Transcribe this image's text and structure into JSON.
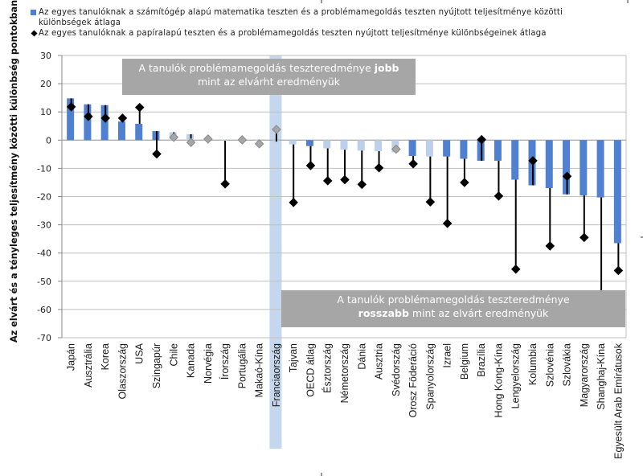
{
  "chart_data": {
    "type": "bar",
    "title": "",
    "xlabel": "",
    "ylabel": "Az elvárt és a tényleges teljesítmény közötti különbség pontokban",
    "ylim": [
      -70,
      30
    ],
    "yticks": [
      30,
      20,
      10,
      0,
      -10,
      -20,
      -30,
      -40,
      -50,
      -60,
      -70
    ],
    "grid": true,
    "legend_position": "top",
    "highlighted_category": "Franciaország",
    "colors": {
      "bar_significant": "#4f81d0",
      "bar_not_significant": "#bcd0ea",
      "marker_significant": "#000000",
      "marker_not_significant": "#a6a6a6",
      "highlight_band": "#c5d7ee",
      "gridline": "#bfbfbf",
      "annotation_box": "#a6a6a6"
    },
    "categories": [
      "Japán",
      "Ausztrália",
      "Korea",
      "Olaszország",
      "USA",
      "Szingapúr",
      "Chile",
      "Kanada",
      "Norvégia",
      "Írország",
      "Portugália",
      "Makaó-Kína",
      "Franciaország",
      "Tajvan",
      "OECD átlag",
      "Észtország",
      "Németország",
      "Dánia",
      "Ausztria",
      "Svédország",
      "Orosz Föderáció",
      "Spanyolország",
      "Izrael",
      "Belgium",
      "Brazília",
      "Hong Kong-Kína",
      "Lengyelország",
      "Kolumbia",
      "Szlovénia",
      "Szlovákia",
      "Magyarország",
      "Shanghaj-Kína",
      "Egyesült Arab Emírátusok"
    ],
    "series": [
      {
        "name": "Az egyes tanulóknak a számítógép alapú matematika teszten és a problémamegoldás teszten nyújtott teljesítménye közötti különbségek átlaga",
        "kind": "bar",
        "values": [
          14.8,
          12.7,
          12.4,
          6.6,
          5.8,
          3.2,
          2.8,
          2.1,
          0.2,
          -0.2,
          0.0,
          -0.3,
          -0.5,
          -1.5,
          -2.1,
          -2.9,
          -3.4,
          -3.7,
          -3.9,
          -4.3,
          -5.6,
          -5.8,
          -5.8,
          -6.6,
          -7.3,
          -7.3,
          -14.0,
          -16.0,
          -17.0,
          -19.2,
          -19.6,
          -20.3,
          -36.5
        ],
        "significant": [
          true,
          true,
          true,
          true,
          true,
          true,
          false,
          false,
          false,
          false,
          false,
          false,
          false,
          false,
          true,
          false,
          false,
          false,
          false,
          false,
          true,
          false,
          true,
          true,
          true,
          true,
          true,
          true,
          true,
          true,
          true,
          true,
          true
        ]
      },
      {
        "name": "Az egyes tanulóknak a papíralapú teszten és a problémamegoldás teszten nyújtott teljesítménye különbségeinek átlaga",
        "kind": "diamond",
        "values": [
          11.8,
          8.4,
          7.8,
          7.8,
          11.6,
          -4.9,
          1.0,
          -0.8,
          0.4,
          -15.5,
          0.1,
          -1.3,
          3.8,
          -22.1,
          -9.0,
          -14.4,
          -14.0,
          -15.7,
          -9.8,
          -3.2,
          -8.4,
          -21.9,
          -29.5,
          -15.0,
          0.2,
          -19.8,
          -45.7,
          -7.3,
          -37.5,
          -12.8,
          -34.5,
          -60.3,
          -46.2
        ],
        "significant": [
          true,
          true,
          true,
          true,
          true,
          true,
          false,
          false,
          false,
          true,
          false,
          false,
          false,
          true,
          true,
          true,
          true,
          true,
          true,
          false,
          true,
          true,
          true,
          true,
          true,
          true,
          true,
          true,
          true,
          true,
          true,
          true,
          true
        ]
      }
    ],
    "annotations": [
      {
        "id": "better",
        "text_before": "A tanulók problémamegoldás teszteredménye ",
        "bold": "jobb",
        "text_after_line2": "mint az elvárht eredményük"
      },
      {
        "id": "worse",
        "text_line1": "A tanulók problémamegoldás teszteredménye",
        "bold": "rosszabb",
        "text_after": " mint az elvárt eredményük"
      }
    ]
  },
  "legend": {
    "bar_label_line1": "Az egyes tanulóknak a számítógép alapú matematika teszten és a problémamegoldás teszten nyújtott teljesítménye közötti",
    "bar_label_line2": "különbségek átlaga",
    "diamond_label": "Az egyes tanulóknak a papíralapú teszten és a problémamegoldás teszten nyújtott teljesítménye különbségeinek átlaga"
  }
}
